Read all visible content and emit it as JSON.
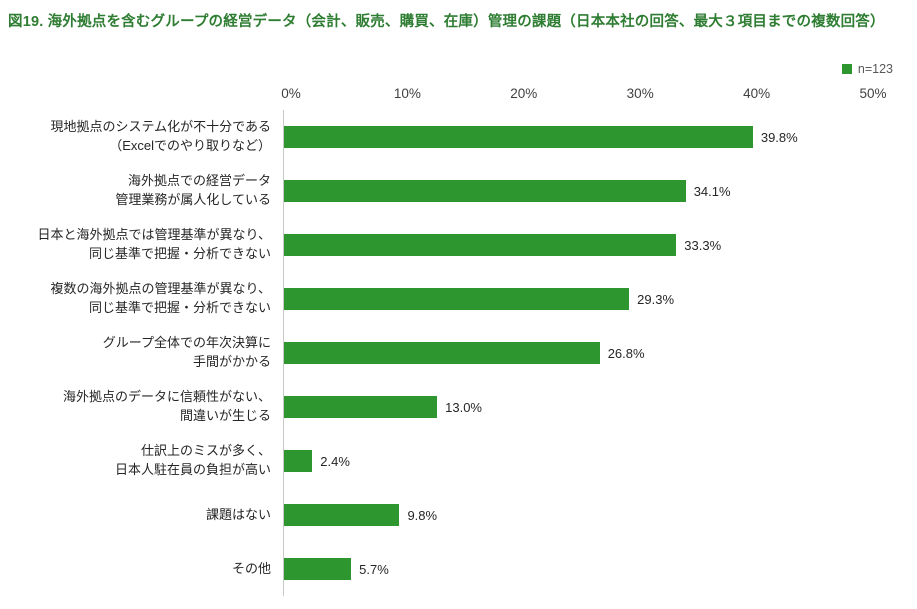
{
  "title": "図19. 海外拠点を含むグループの経営データ（会計、販売、購買、在庫）管理の課題（日本本社の回答、最大３項目までの複数回答）",
  "legend": {
    "label": "n=123",
    "color": "#2e962e",
    "text_color": "#595959"
  },
  "colors": {
    "title": "#2e7d32",
    "bar": "#2e962e",
    "axis_line": "#c8c8c8"
  },
  "chart_data": {
    "type": "bar",
    "orientation": "horizontal",
    "title": "図19. 海外拠点を含むグループの経営データ（会計、販売、購買、在庫）管理の課題（日本本社の回答、最大３項目までの複数回答）",
    "legend": "n=123",
    "legend_position": "top-right",
    "categories": [
      "現地拠点のシステム化が不十分である\n（Excelでのやり取りなど）",
      "海外拠点での経営データ\n管理業務が属人化している",
      "日本と海外拠点では管理基準が異なり、\n同じ基準で把握・分析できない",
      "複数の海外拠点の管理基準が異なり、\n同じ基準で把握・分析できない",
      "グループ全体での年次決算に\n手間がかかる",
      "海外拠点のデータに信頼性がない、\n間違いが生じる",
      "仕訳上のミスが多く、\n日本人駐在員の負担が高い",
      "課題はない",
      "その他"
    ],
    "values": [
      39.8,
      34.1,
      33.3,
      29.3,
      26.8,
      13.0,
      2.4,
      9.8,
      5.7
    ],
    "value_labels": [
      "39.8%",
      "34.1%",
      "33.3%",
      "29.3%",
      "26.8%",
      "13.0%",
      "2.4%",
      "9.8%",
      "5.7%"
    ],
    "xlabel": "",
    "ylabel": "",
    "xlim": [
      0,
      50
    ],
    "x_ticks": [
      "0%",
      "10%",
      "20%",
      "30%",
      "40%",
      "50%"
    ],
    "grid": false,
    "bar_color": "#2e962e"
  }
}
